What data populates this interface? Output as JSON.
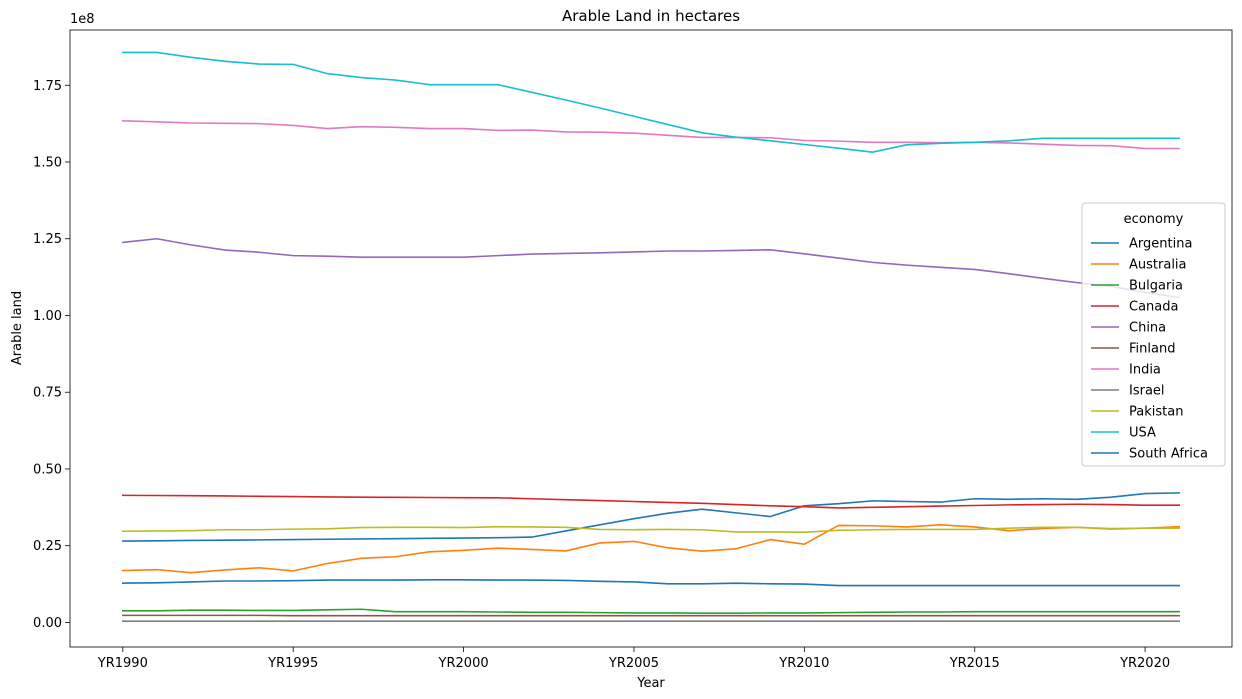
{
  "chart_data": {
    "type": "line",
    "title": "Arable Land in hectares",
    "xlabel": "Year",
    "ylabel": "Arable land",
    "y_offset_label": "1e8",
    "y_scale": 100000000,
    "ylim": [
      -8000000,
      193000000
    ],
    "y_ticks": [
      0,
      25000000,
      50000000,
      75000000,
      100000000,
      125000000,
      150000000,
      175000000
    ],
    "y_tick_labels": [
      "0.00",
      "0.25",
      "0.50",
      "0.75",
      "1.00",
      "1.25",
      "1.50",
      "1.75"
    ],
    "x_ticks": [
      0,
      5,
      10,
      15,
      20,
      25,
      30
    ],
    "x_tick_labels": [
      "YR1990",
      "YR1995",
      "YR2000",
      "YR2005",
      "YR2010",
      "YR2015",
      "YR2020"
    ],
    "x": [
      "YR1990",
      "YR1991",
      "YR1992",
      "YR1993",
      "YR1994",
      "YR1995",
      "YR1996",
      "YR1997",
      "YR1998",
      "YR1999",
      "YR2000",
      "YR2001",
      "YR2002",
      "YR2003",
      "YR2004",
      "YR2005",
      "YR2006",
      "YR2007",
      "YR2008",
      "YR2009",
      "YR2010",
      "YR2011",
      "YR2012",
      "YR2013",
      "YR2014",
      "YR2015",
      "YR2016",
      "YR2017",
      "YR2018",
      "YR2019",
      "YR2020",
      "YR2021"
    ],
    "legend_title": "economy",
    "legend_position": "center-right",
    "grid": false,
    "series": [
      {
        "name": "Argentina",
        "color": "#1f77b4",
        "values": [
          26500000,
          26600000,
          26700000,
          26800000,
          26900000,
          27000000,
          27100000,
          27200000,
          27300000,
          27400000,
          27500000,
          27600000,
          27800000,
          29800000,
          31800000,
          33800000,
          35600000,
          36900000,
          35700000,
          34500000,
          38000000,
          38700000,
          39600000,
          39400000,
          39200000,
          40300000,
          40100000,
          40300000,
          40100000,
          40800000,
          42000000,
          42200000
        ]
      },
      {
        "name": "Australia",
        "color": "#ff7f0e",
        "values": [
          16900000,
          17200000,
          16200000,
          17100000,
          17800000,
          16800000,
          19200000,
          20900000,
          21400000,
          23000000,
          23500000,
          24200000,
          23800000,
          23300000,
          25900000,
          26400000,
          24300000,
          23200000,
          24000000,
          27000000,
          25500000,
          31600000,
          31500000,
          31100000,
          31800000,
          31100000,
          29900000,
          30600000,
          31000000,
          30400000,
          30700000,
          31200000
        ]
      },
      {
        "name": "Bulgaria",
        "color": "#2ca02c",
        "values": [
          3800000,
          3800000,
          4000000,
          4000000,
          3900000,
          3900000,
          4100000,
          4300000,
          3500000,
          3500000,
          3500000,
          3400000,
          3300000,
          3300000,
          3200000,
          3100000,
          3100000,
          3000000,
          3000000,
          3100000,
          3100000,
          3200000,
          3300000,
          3400000,
          3400000,
          3500000,
          3500000,
          3500000,
          3500000,
          3500000,
          3500000,
          3500000
        ]
      },
      {
        "name": "Canada",
        "color": "#d62728",
        "values": [
          41400000,
          41350000,
          41300000,
          41200000,
          41100000,
          41000000,
          40900000,
          40800000,
          40750000,
          40700000,
          40650000,
          40600000,
          40300000,
          40000000,
          39700000,
          39400000,
          39100000,
          38800000,
          38400000,
          38000000,
          37700000,
          37300000,
          37500000,
          37700000,
          37900000,
          38100000,
          38300000,
          38400000,
          38500000,
          38400000,
          38200000,
          38200000
        ]
      },
      {
        "name": "China",
        "color": "#9467bd",
        "values": [
          123800000,
          125000000,
          123000000,
          121300000,
          120600000,
          119500000,
          119300000,
          119000000,
          119000000,
          119000000,
          119000000,
          119500000,
          120000000,
          120200000,
          120400000,
          120700000,
          121000000,
          121000000,
          121200000,
          121400000,
          120100000,
          118700000,
          117300000,
          116400000,
          115700000,
          115000000,
          113600000,
          112100000,
          110700000,
          109500000,
          107500000,
          105900000
        ]
      },
      {
        "name": "Finland",
        "color": "#8c564b",
        "values": [
          2300000,
          2300000,
          2300000,
          2300000,
          2300000,
          2200000,
          2200000,
          2200000,
          2200000,
          2200000,
          2200000,
          2200000,
          2200000,
          2200000,
          2200000,
          2200000,
          2200000,
          2200000,
          2200000,
          2200000,
          2200000,
          2200000,
          2200000,
          2200000,
          2200000,
          2200000,
          2200000,
          2200000,
          2200000,
          2200000,
          2200000,
          2200000
        ]
      },
      {
        "name": "India",
        "color": "#e377c2",
        "values": [
          163400000,
          163100000,
          162700000,
          162600000,
          162500000,
          161900000,
          160900000,
          161500000,
          161300000,
          160900000,
          160900000,
          160300000,
          160400000,
          159800000,
          159700000,
          159400000,
          158700000,
          158000000,
          158000000,
          157900000,
          157000000,
          156800000,
          156400000,
          156400000,
          156300000,
          156400000,
          156200000,
          155800000,
          155400000,
          155300000,
          154400000,
          154400000
        ]
      },
      {
        "name": "Israel",
        "color": "#7f7f7f",
        "values": [
          400000,
          400000,
          400000,
          400000,
          400000,
          400000,
          400000,
          400000,
          400000,
          400000,
          400000,
          400000,
          400000,
          400000,
          400000,
          400000,
          400000,
          400000,
          400000,
          400000,
          400000,
          400000,
          400000,
          400000,
          400000,
          400000,
          400000,
          400000,
          400000,
          400000,
          400000,
          400000
        ]
      },
      {
        "name": "Pakistan",
        "color": "#bcbd22",
        "values": [
          29700000,
          29800000,
          29900000,
          30200000,
          30200000,
          30400000,
          30500000,
          30900000,
          31000000,
          31000000,
          30900000,
          31200000,
          31100000,
          31000000,
          30300000,
          30200000,
          30300000,
          30200000,
          29500000,
          29500000,
          29400000,
          30000000,
          30200000,
          30300000,
          30300000,
          30300000,
          30700000,
          31000000,
          31000000,
          30600000,
          30700000,
          30700000
        ]
      },
      {
        "name": "USA",
        "color": "#17becf",
        "values": [
          185700000,
          185700000,
          184100000,
          182800000,
          181900000,
          181800000,
          178800000,
          177500000,
          176700000,
          175200000,
          175200000,
          175200000,
          172700000,
          170200000,
          167600000,
          164900000,
          162200000,
          159500000,
          158100000,
          156900000,
          155700000,
          154500000,
          153200000,
          155600000,
          156100000,
          156400000,
          156900000,
          157700000,
          157700000,
          157700000,
          157700000,
          157700000
        ]
      },
      {
        "name": "South Africa",
        "color": "#1f77b4",
        "values": [
          12800000,
          12900000,
          13200000,
          13500000,
          13500000,
          13600000,
          13800000,
          13800000,
          13800000,
          13900000,
          13900000,
          13800000,
          13800000,
          13700000,
          13400000,
          13200000,
          12600000,
          12600000,
          12800000,
          12600000,
          12500000,
          12000000,
          12000000,
          12000000,
          12000000,
          12000000,
          12000000,
          12000000,
          12000000,
          12000000,
          12000000,
          12000000
        ]
      }
    ]
  }
}
